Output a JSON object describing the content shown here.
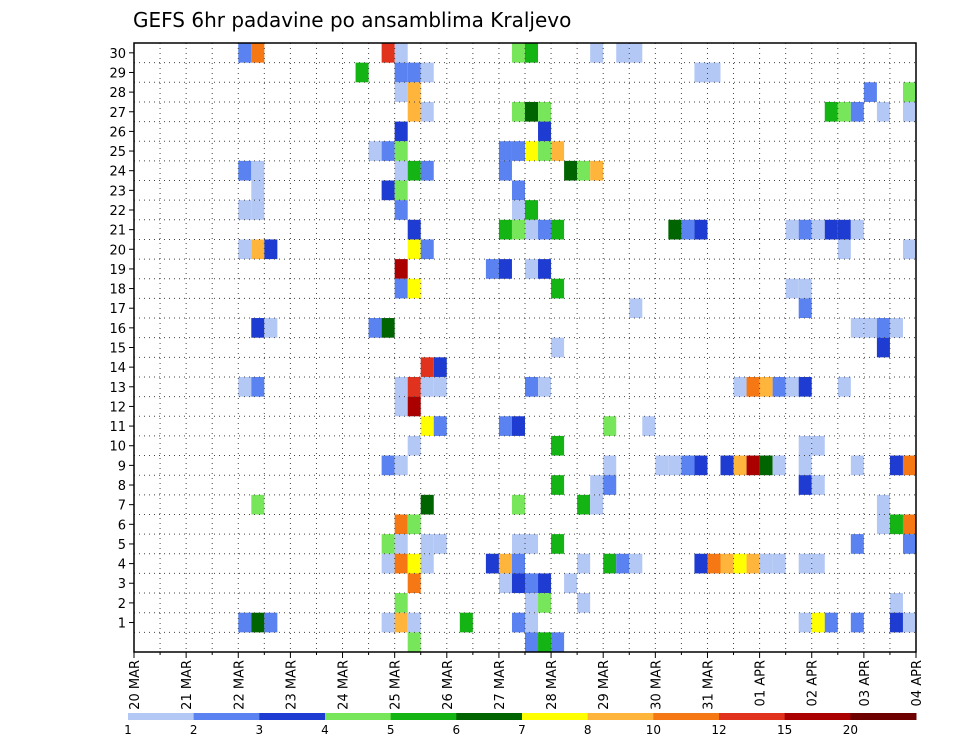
{
  "chart_data": {
    "type": "heatmap",
    "title": "GEFS 6hr padavine po ansamblima Kraljevo",
    "xlabel": "",
    "ylabel": "",
    "x_ticks": [
      "20 MAR",
      "21 MAR",
      "22 MAR",
      "23 MAR",
      "24 MAR",
      "25 MAR",
      "26 MAR",
      "27 MAR",
      "28 MAR",
      "29 MAR",
      "30 MAR",
      "31 MAR",
      "01 APR",
      "02 APR",
      "03 APR",
      "04 APR"
    ],
    "y_ticks": [
      "1",
      "2",
      "3",
      "4",
      "5",
      "6",
      "7",
      "8",
      "9",
      "10",
      "11",
      "12",
      "13",
      "14",
      "15",
      "16",
      "17",
      "18",
      "19",
      "20",
      "21",
      "22",
      "23",
      "24",
      "25",
      "26",
      "27",
      "28",
      "29",
      "30"
    ],
    "steps_per_day": 4,
    "ylim": [
      0,
      30
    ],
    "grid": true,
    "legend": {
      "position": "bottom",
      "labels": [
        "1",
        "2",
        "3",
        "4",
        "5",
        "6",
        "7",
        "8",
        "10",
        "12",
        "15",
        "20"
      ],
      "colors": [
        "#b4c8f5",
        "#5a82f0",
        "#1e3cd2",
        "#78e65a",
        "#14b414",
        "#006400",
        "#ffff00",
        "#ffb43c",
        "#f57814",
        "#e1321e",
        "#aa0000",
        "#6e0000"
      ]
    },
    "colors": {
      "1": "#b4c8f5",
      "2": "#5a82f0",
      "3": "#1e3cd2",
      "4": "#78e65a",
      "5": "#14b414",
      "6": "#006400",
      "7": "#ffff00",
      "8": "#ffb43c",
      "9": "#f57814",
      "10": "#e1321e",
      "11": "#aa0000",
      "12": "#6e0000"
    },
    "cells": [
      [
        30,
        8,
        2
      ],
      [
        30,
        9,
        9
      ],
      [
        30,
        19,
        10
      ],
      [
        30,
        20,
        1
      ],
      [
        30,
        29,
        4
      ],
      [
        30,
        30,
        5
      ],
      [
        30,
        35,
        1
      ],
      [
        30,
        37,
        1
      ],
      [
        30,
        38,
        1
      ],
      [
        29,
        17,
        5
      ],
      [
        29,
        20,
        2
      ],
      [
        29,
        21,
        2
      ],
      [
        29,
        22,
        1
      ],
      [
        29,
        43,
        1
      ],
      [
        29,
        44,
        1
      ],
      [
        28,
        20,
        1
      ],
      [
        28,
        21,
        8
      ],
      [
        28,
        56,
        2
      ],
      [
        28,
        59,
        4
      ],
      [
        28,
        60,
        7
      ],
      [
        27,
        21,
        8
      ],
      [
        27,
        22,
        1
      ],
      [
        27,
        29,
        4
      ],
      [
        27,
        30,
        6
      ],
      [
        27,
        31,
        4
      ],
      [
        27,
        53,
        5
      ],
      [
        27,
        54,
        4
      ],
      [
        27,
        55,
        2
      ],
      [
        27,
        57,
        1
      ],
      [
        27,
        59,
        1
      ],
      [
        27,
        60,
        2
      ],
      [
        26,
        20,
        3
      ],
      [
        26,
        31,
        3
      ],
      [
        25,
        18,
        1
      ],
      [
        25,
        19,
        2
      ],
      [
        25,
        20,
        4
      ],
      [
        25,
        28,
        2
      ],
      [
        25,
        29,
        2
      ],
      [
        25,
        30,
        7
      ],
      [
        25,
        31,
        4
      ],
      [
        25,
        32,
        8
      ],
      [
        24,
        8,
        2
      ],
      [
        24,
        9,
        1
      ],
      [
        24,
        20,
        1
      ],
      [
        24,
        21,
        5
      ],
      [
        24,
        22,
        2
      ],
      [
        24,
        28,
        2
      ],
      [
        24,
        33,
        6
      ],
      [
        24,
        34,
        4
      ],
      [
        24,
        35,
        8
      ],
      [
        23,
        9,
        1
      ],
      [
        23,
        19,
        3
      ],
      [
        23,
        20,
        4
      ],
      [
        23,
        29,
        2
      ],
      [
        23,
        60,
        9
      ],
      [
        22,
        8,
        1
      ],
      [
        22,
        9,
        1
      ],
      [
        22,
        20,
        2
      ],
      [
        22,
        29,
        1
      ],
      [
        22,
        30,
        5
      ],
      [
        21,
        21,
        3
      ],
      [
        21,
        28,
        5
      ],
      [
        21,
        29,
        4
      ],
      [
        21,
        30,
        1
      ],
      [
        21,
        31,
        2
      ],
      [
        21,
        32,
        5
      ],
      [
        21,
        41,
        6
      ],
      [
        21,
        42,
        2
      ],
      [
        21,
        43,
        3
      ],
      [
        21,
        50,
        1
      ],
      [
        21,
        51,
        2
      ],
      [
        21,
        52,
        1
      ],
      [
        21,
        53,
        3
      ],
      [
        21,
        54,
        3
      ],
      [
        21,
        55,
        1
      ],
      [
        20,
        8,
        1
      ],
      [
        20,
        9,
        8
      ],
      [
        20,
        10,
        3
      ],
      [
        20,
        21,
        7
      ],
      [
        20,
        22,
        2
      ],
      [
        20,
        54,
        1
      ],
      [
        20,
        59,
        1
      ],
      [
        19,
        20,
        11
      ],
      [
        19,
        27,
        2
      ],
      [
        19,
        28,
        3
      ],
      [
        19,
        30,
        1
      ],
      [
        19,
        31,
        3
      ],
      [
        18,
        20,
        2
      ],
      [
        18,
        21,
        7
      ],
      [
        18,
        32,
        5
      ],
      [
        18,
        50,
        1
      ],
      [
        18,
        51,
        1
      ],
      [
        17,
        38,
        1
      ],
      [
        17,
        51,
        2
      ],
      [
        16,
        9,
        3
      ],
      [
        16,
        10,
        1
      ],
      [
        16,
        18,
        2
      ],
      [
        16,
        19,
        6
      ],
      [
        16,
        55,
        1
      ],
      [
        16,
        56,
        1
      ],
      [
        16,
        57,
        2
      ],
      [
        16,
        58,
        1
      ],
      [
        15,
        32,
        1
      ],
      [
        15,
        57,
        3
      ],
      [
        14,
        22,
        10
      ],
      [
        14,
        23,
        3
      ],
      [
        13,
        8,
        1
      ],
      [
        13,
        9,
        2
      ],
      [
        13,
        20,
        1
      ],
      [
        13,
        21,
        10
      ],
      [
        13,
        22,
        1
      ],
      [
        13,
        23,
        1
      ],
      [
        13,
        30,
        2
      ],
      [
        13,
        31,
        1
      ],
      [
        13,
        46,
        1
      ],
      [
        13,
        47,
        9
      ],
      [
        13,
        48,
        8
      ],
      [
        13,
        49,
        2
      ],
      [
        13,
        50,
        1
      ],
      [
        13,
        51,
        3
      ],
      [
        13,
        54,
        1
      ],
      [
        12,
        20,
        1
      ],
      [
        12,
        21,
        11
      ],
      [
        11,
        22,
        7
      ],
      [
        11,
        23,
        2
      ],
      [
        11,
        28,
        2
      ],
      [
        11,
        29,
        3
      ],
      [
        11,
        36,
        4
      ],
      [
        11,
        39,
        1
      ],
      [
        10,
        21,
        1
      ],
      [
        10,
        32,
        5
      ],
      [
        10,
        51,
        1
      ],
      [
        10,
        52,
        1
      ],
      [
        9,
        19,
        2
      ],
      [
        9,
        20,
        1
      ],
      [
        9,
        36,
        1
      ],
      [
        9,
        40,
        1
      ],
      [
        9,
        41,
        1
      ],
      [
        9,
        42,
        2
      ],
      [
        9,
        43,
        3
      ],
      [
        9,
        45,
        3
      ],
      [
        9,
        46,
        8
      ],
      [
        9,
        47,
        11
      ],
      [
        9,
        48,
        6
      ],
      [
        9,
        49,
        1
      ],
      [
        9,
        51,
        1
      ],
      [
        9,
        55,
        1
      ],
      [
        9,
        58,
        3
      ],
      [
        9,
        59,
        9
      ],
      [
        9,
        60,
        6
      ],
      [
        8,
        32,
        5
      ],
      [
        8,
        35,
        1
      ],
      [
        8,
        36,
        2
      ],
      [
        8,
        51,
        3
      ],
      [
        8,
        52,
        1
      ],
      [
        7,
        9,
        4
      ],
      [
        7,
        22,
        6
      ],
      [
        7,
        29,
        4
      ],
      [
        7,
        34,
        5
      ],
      [
        7,
        35,
        1
      ],
      [
        7,
        57,
        1
      ],
      [
        6,
        20,
        9
      ],
      [
        6,
        21,
        4
      ],
      [
        6,
        57,
        1
      ],
      [
        6,
        58,
        5
      ],
      [
        6,
        59,
        9
      ],
      [
        6,
        60,
        2
      ],
      [
        5,
        19,
        4
      ],
      [
        5,
        20,
        1
      ],
      [
        5,
        22,
        1
      ],
      [
        5,
        23,
        1
      ],
      [
        5,
        29,
        1
      ],
      [
        5,
        30,
        1
      ],
      [
        5,
        32,
        5
      ],
      [
        5,
        55,
        2
      ],
      [
        5,
        59,
        2
      ],
      [
        4,
        19,
        1
      ],
      [
        4,
        20,
        9
      ],
      [
        4,
        21,
        7
      ],
      [
        4,
        22,
        1
      ],
      [
        4,
        27,
        3
      ],
      [
        4,
        28,
        8
      ],
      [
        4,
        29,
        2
      ],
      [
        4,
        34,
        1
      ],
      [
        4,
        36,
        5
      ],
      [
        4,
        37,
        2
      ],
      [
        4,
        38,
        1
      ],
      [
        4,
        43,
        3
      ],
      [
        4,
        44,
        9
      ],
      [
        4,
        45,
        8
      ],
      [
        4,
        46,
        7
      ],
      [
        4,
        47,
        8
      ],
      [
        4,
        48,
        1
      ],
      [
        4,
        49,
        1
      ],
      [
        4,
        51,
        1
      ],
      [
        4,
        52,
        1
      ],
      [
        3,
        21,
        9
      ],
      [
        3,
        28,
        1
      ],
      [
        3,
        29,
        3
      ],
      [
        3,
        30,
        2
      ],
      [
        3,
        31,
        3
      ],
      [
        3,
        33,
        1
      ],
      [
        2,
        20,
        4
      ],
      [
        2,
        30,
        1
      ],
      [
        2,
        31,
        4
      ],
      [
        2,
        34,
        1
      ],
      [
        2,
        58,
        1
      ],
      [
        1,
        8,
        2
      ],
      [
        1,
        9,
        6
      ],
      [
        1,
        10,
        2
      ],
      [
        1,
        19,
        1
      ],
      [
        1,
        20,
        8
      ],
      [
        1,
        21,
        1
      ],
      [
        1,
        25,
        5
      ],
      [
        1,
        29,
        2
      ],
      [
        1,
        30,
        1
      ],
      [
        1,
        51,
        1
      ],
      [
        1,
        52,
        7
      ],
      [
        1,
        53,
        2
      ],
      [
        1,
        55,
        2
      ],
      [
        1,
        58,
        3
      ],
      [
        1,
        59,
        1
      ],
      [
        0,
        21,
        4
      ],
      [
        0,
        30,
        2
      ],
      [
        0,
        31,
        5
      ],
      [
        0,
        32,
        2
      ]
    ]
  }
}
